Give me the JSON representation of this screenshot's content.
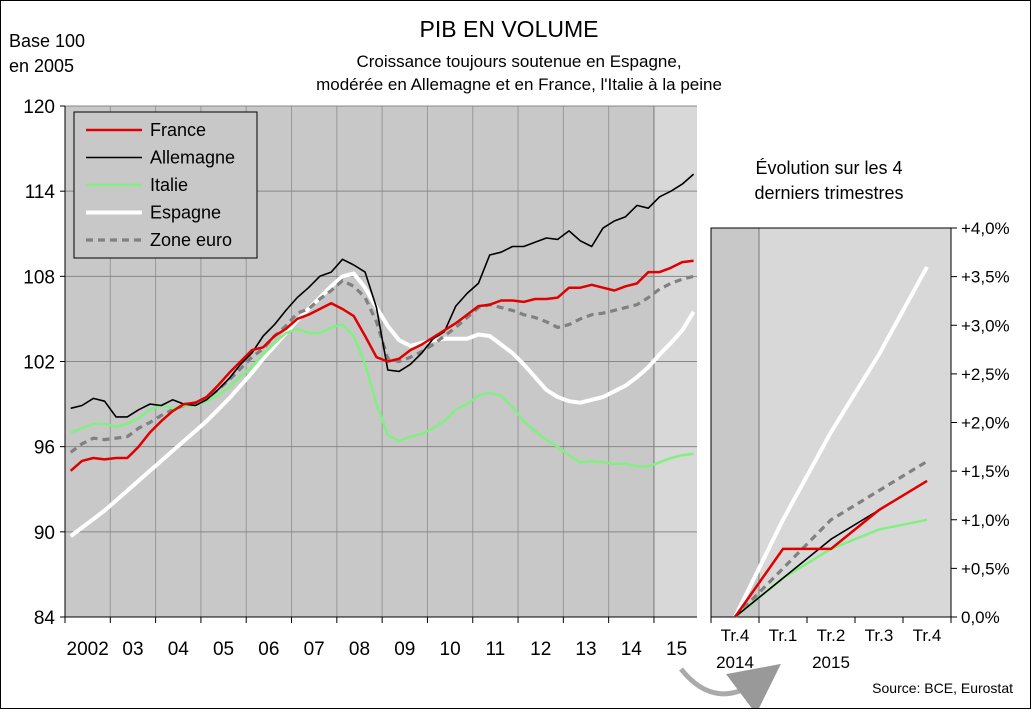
{
  "header": {
    "title": "PIB EN VOLUME",
    "subtitle_line1": "Croissance toujours soutenue en Espagne,",
    "subtitle_line2": "modérée en Allemagne et en France, l'Italie à la peine",
    "base_line1": "Base 100",
    "base_line2": "en 2005",
    "source": "Source: BCE, Eurostat"
  },
  "colors": {
    "France": "#e00000",
    "Allemagne": "#000000",
    "Italie": "#80f080",
    "Espagne": "#ffffff",
    "Zone euro": "#808080",
    "plot_bg": "#c8c8c8",
    "shade_bg": "#d8d8d8",
    "grid": "#999999"
  },
  "chart_data": [
    {
      "type": "line",
      "ylim": [
        84,
        120
      ],
      "yticks": [
        "84",
        "90",
        "96",
        "102",
        "108",
        "114",
        "120"
      ],
      "xlim": [
        2002.0,
        2015.95
      ],
      "xticks": [
        {
          "x": 2002.5,
          "label": "2002"
        },
        {
          "x": 2003.5,
          "label": "03"
        },
        {
          "x": 2004.5,
          "label": "04"
        },
        {
          "x": 2005.5,
          "label": "05"
        },
        {
          "x": 2006.5,
          "label": "06"
        },
        {
          "x": 2007.5,
          "label": "07"
        },
        {
          "x": 2008.5,
          "label": "08"
        },
        {
          "x": 2009.5,
          "label": "09"
        },
        {
          "x": 2010.5,
          "label": "10"
        },
        {
          "x": 2011.5,
          "label": "11"
        },
        {
          "x": 2012.5,
          "label": "12"
        },
        {
          "x": 2013.5,
          "label": "13"
        },
        {
          "x": 2014.5,
          "label": "14"
        },
        {
          "x": 2015.5,
          "label": "15"
        }
      ],
      "shaded_from": 2015.0,
      "legend_position": "top-left",
      "series": [
        {
          "name": "France",
          "x": [
            2002.125,
            2002.375,
            2002.625,
            2002.875,
            2003.125,
            2003.375,
            2003.625,
            2003.875,
            2004.125,
            2004.375,
            2004.625,
            2004.875,
            2005.125,
            2005.375,
            2005.625,
            2005.875,
            2006.125,
            2006.375,
            2006.625,
            2006.875,
            2007.125,
            2007.375,
            2007.625,
            2007.875,
            2008.125,
            2008.375,
            2008.625,
            2008.875,
            2009.125,
            2009.375,
            2009.625,
            2009.875,
            2010.125,
            2010.375,
            2010.625,
            2010.875,
            2011.125,
            2011.375,
            2011.625,
            2011.875,
            2012.125,
            2012.375,
            2012.625,
            2012.875,
            2013.125,
            2013.375,
            2013.625,
            2013.875,
            2014.125,
            2014.375,
            2014.625,
            2014.875,
            2015.125,
            2015.375,
            2015.625,
            2015.875
          ],
          "y": [
            94.3,
            95.0,
            95.2,
            95.1,
            95.2,
            95.2,
            96.0,
            97.0,
            97.8,
            98.5,
            99.0,
            99.1,
            99.5,
            100.3,
            101.2,
            102.0,
            102.8,
            103.0,
            103.8,
            104.3,
            105.0,
            105.3,
            105.7,
            106.1,
            105.7,
            105.2,
            103.8,
            102.3,
            102.0,
            102.2,
            102.8,
            103.2,
            103.7,
            104.2,
            104.7,
            105.3,
            105.9,
            106.0,
            106.3,
            106.3,
            106.2,
            106.4,
            106.4,
            106.5,
            107.2,
            107.2,
            107.4,
            107.2,
            107.0,
            107.3,
            107.5,
            108.3,
            108.3,
            108.6,
            109.0,
            109.1
          ]
        },
        {
          "name": "Allemagne",
          "x": [
            2002.125,
            2002.375,
            2002.625,
            2002.875,
            2003.125,
            2003.375,
            2003.625,
            2003.875,
            2004.125,
            2004.375,
            2004.625,
            2004.875,
            2005.125,
            2005.375,
            2005.625,
            2005.875,
            2006.125,
            2006.375,
            2006.625,
            2006.875,
            2007.125,
            2007.375,
            2007.625,
            2007.875,
            2008.125,
            2008.375,
            2008.625,
            2008.875,
            2009.125,
            2009.375,
            2009.625,
            2009.875,
            2010.125,
            2010.375,
            2010.625,
            2010.875,
            2011.125,
            2011.375,
            2011.625,
            2011.875,
            2012.125,
            2012.375,
            2012.625,
            2012.875,
            2013.125,
            2013.375,
            2013.625,
            2013.875,
            2014.125,
            2014.375,
            2014.625,
            2014.875,
            2015.125,
            2015.375,
            2015.625,
            2015.875
          ],
          "y": [
            98.7,
            98.9,
            99.4,
            99.2,
            98.1,
            98.1,
            98.6,
            99.0,
            98.9,
            99.3,
            99.0,
            98.9,
            99.3,
            100.0,
            100.8,
            101.8,
            102.6,
            103.8,
            104.6,
            105.6,
            106.5,
            107.2,
            108.0,
            108.3,
            109.2,
            108.8,
            108.3,
            105.8,
            101.4,
            101.3,
            101.8,
            102.6,
            103.6,
            104.1,
            105.9,
            106.8,
            107.5,
            109.5,
            109.7,
            110.1,
            110.1,
            110.4,
            110.7,
            110.6,
            111.2,
            110.5,
            110.1,
            111.4,
            111.9,
            112.2,
            113.0,
            112.8,
            113.6,
            114.0,
            114.5,
            115.2
          ]
        },
        {
          "name": "Italie",
          "x": [
            2002.125,
            2002.375,
            2002.625,
            2002.875,
            2003.125,
            2003.375,
            2003.625,
            2003.875,
            2004.125,
            2004.375,
            2004.625,
            2004.875,
            2005.125,
            2005.375,
            2005.625,
            2005.875,
            2006.125,
            2006.375,
            2006.625,
            2006.875,
            2007.125,
            2007.375,
            2007.625,
            2007.875,
            2008.125,
            2008.375,
            2008.625,
            2008.875,
            2009.125,
            2009.375,
            2009.625,
            2009.875,
            2010.125,
            2010.375,
            2010.625,
            2010.875,
            2011.125,
            2011.375,
            2011.625,
            2011.875,
            2012.125,
            2012.375,
            2012.625,
            2012.875,
            2013.125,
            2013.375,
            2013.625,
            2013.875,
            2014.125,
            2014.375,
            2014.625,
            2014.875,
            2015.125,
            2015.375,
            2015.625,
            2015.875
          ],
          "y": [
            97.0,
            97.3,
            97.6,
            97.6,
            97.4,
            97.6,
            98.0,
            98.6,
            98.9,
            98.7,
            98.9,
            98.9,
            99.2,
            99.6,
            100.2,
            101.0,
            101.6,
            102.5,
            103.3,
            104.0,
            104.3,
            104.0,
            104.0,
            104.4,
            104.6,
            103.8,
            101.8,
            99.0,
            96.8,
            96.4,
            96.7,
            96.9,
            97.3,
            97.8,
            98.6,
            99.0,
            99.6,
            99.8,
            99.6,
            98.8,
            97.8,
            97.1,
            96.5,
            96.0,
            95.4,
            94.9,
            95.0,
            94.9,
            94.8,
            94.8,
            94.6,
            94.6,
            94.9,
            95.2,
            95.4,
            95.5
          ]
        },
        {
          "name": "Espagne",
          "x": [
            2002.125,
            2002.375,
            2002.625,
            2002.875,
            2003.125,
            2003.375,
            2003.625,
            2003.875,
            2004.125,
            2004.375,
            2004.625,
            2004.875,
            2005.125,
            2005.375,
            2005.625,
            2005.875,
            2006.125,
            2006.375,
            2006.625,
            2006.875,
            2007.125,
            2007.375,
            2007.625,
            2007.875,
            2008.125,
            2008.375,
            2008.625,
            2008.875,
            2009.125,
            2009.375,
            2009.625,
            2009.875,
            2010.125,
            2010.375,
            2010.625,
            2010.875,
            2011.125,
            2011.375,
            2011.625,
            2011.875,
            2012.125,
            2012.375,
            2012.625,
            2012.875,
            2013.125,
            2013.375,
            2013.625,
            2013.875,
            2014.125,
            2014.375,
            2014.625,
            2014.875,
            2015.125,
            2015.375,
            2015.625,
            2015.875
          ],
          "y": [
            89.7,
            90.3,
            90.9,
            91.5,
            92.2,
            92.9,
            93.6,
            94.3,
            95.0,
            95.7,
            96.4,
            97.1,
            97.8,
            98.6,
            99.4,
            100.3,
            101.2,
            102.2,
            103.1,
            104.0,
            104.9,
            105.7,
            106.5,
            107.3,
            108.0,
            108.2,
            107.2,
            105.8,
            104.5,
            103.5,
            103.1,
            103.3,
            103.5,
            103.6,
            103.6,
            103.6,
            103.9,
            103.8,
            103.2,
            102.6,
            101.8,
            100.9,
            100.0,
            99.5,
            99.2,
            99.1,
            99.3,
            99.5,
            99.9,
            100.3,
            100.9,
            101.6,
            102.5,
            103.3,
            104.2,
            105.5
          ]
        },
        {
          "name": "Zone euro",
          "x": [
            2002.125,
            2002.375,
            2002.625,
            2002.875,
            2003.125,
            2003.375,
            2003.625,
            2003.875,
            2004.125,
            2004.375,
            2004.625,
            2004.875,
            2005.125,
            2005.375,
            2005.625,
            2005.875,
            2006.125,
            2006.375,
            2006.625,
            2006.875,
            2007.125,
            2007.375,
            2007.625,
            2007.875,
            2008.125,
            2008.375,
            2008.625,
            2008.875,
            2009.125,
            2009.375,
            2009.625,
            2009.875,
            2010.125,
            2010.375,
            2010.625,
            2010.875,
            2011.125,
            2011.375,
            2011.625,
            2011.875,
            2012.125,
            2012.375,
            2012.625,
            2012.875,
            2013.125,
            2013.375,
            2013.625,
            2013.875,
            2014.125,
            2014.375,
            2014.625,
            2014.875,
            2015.125,
            2015.375,
            2015.625,
            2015.875
          ],
          "y": [
            95.6,
            96.2,
            96.6,
            96.5,
            96.6,
            96.7,
            97.3,
            97.7,
            98.2,
            98.6,
            98.9,
            99.1,
            99.4,
            100.0,
            100.7,
            101.5,
            102.3,
            102.9,
            103.8,
            104.5,
            105.4,
            105.7,
            106.4,
            107.0,
            107.7,
            107.3,
            106.5,
            104.8,
            102.2,
            102.0,
            102.3,
            102.7,
            103.2,
            103.8,
            104.4,
            105.1,
            105.8,
            106.0,
            105.8,
            105.6,
            105.3,
            105.1,
            104.8,
            104.4,
            104.6,
            105.0,
            105.3,
            105.4,
            105.6,
            105.8,
            106.0,
            106.5,
            107.1,
            107.5,
            107.8,
            108.0
          ]
        }
      ]
    },
    {
      "type": "line",
      "title_line1": "Évolution sur les 4",
      "title_line2": "derniers trimestres",
      "categories": [
        "Tr.4",
        "Tr.1",
        "Tr.2",
        "Tr.3",
        "Tr.4"
      ],
      "year_labels": [
        {
          "after_index": 0,
          "label": "2014"
        },
        {
          "after_index": 2,
          "label": "2015"
        }
      ],
      "ylim": [
        0,
        4
      ],
      "yticks": [
        "0,0%",
        "+0,5%",
        "+1,0%",
        "+1,5%",
        "+2,0%",
        "+2,5%",
        "+3,0%",
        "+3,5%",
        "+4,0%"
      ],
      "shaded_until_index": 0.5,
      "series": [
        {
          "name": "France",
          "values": [
            0.0,
            0.7,
            0.7,
            1.1,
            1.4
          ]
        },
        {
          "name": "Allemagne",
          "values": [
            0.0,
            0.4,
            0.8,
            1.1,
            1.4
          ]
        },
        {
          "name": "Italie",
          "values": [
            0.0,
            0.4,
            0.7,
            0.9,
            1.0
          ]
        },
        {
          "name": "Espagne",
          "values": [
            0.0,
            1.0,
            1.9,
            2.7,
            3.6
          ]
        },
        {
          "name": "Zone euro",
          "values": [
            0.0,
            0.5,
            1.0,
            1.3,
            1.6
          ]
        }
      ]
    }
  ]
}
